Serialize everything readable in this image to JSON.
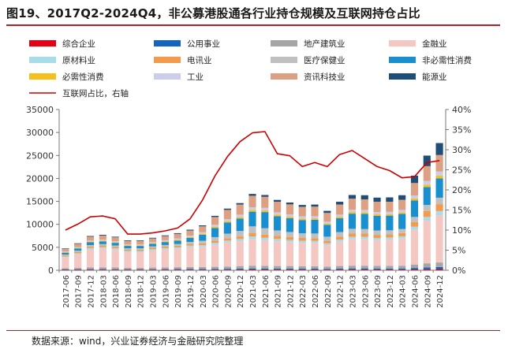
{
  "figure": {
    "title": "图19、2017Q2-2024Q4，非公募港股通各行业持仓规模及互联网持仓占比",
    "source": "数据来源：wind，兴业证券经济与金融研究院整理"
  },
  "chart_data": {
    "type": "bar",
    "stacked": true,
    "categories": [
      "2017-06",
      "2017-09",
      "2017-12",
      "2018-03",
      "2018-06",
      "2018-09",
      "2018-12",
      "2019-03",
      "2019-06",
      "2019-09",
      "2019-12",
      "2020-03",
      "2020-06",
      "2020-09",
      "2020-12",
      "2021-03",
      "2021-06",
      "2021-09",
      "2021-12",
      "2022-03",
      "2022-06",
      "2022-09",
      "2022-12",
      "2023-03",
      "2023-06",
      "2023-09",
      "2023-12",
      "2024-03",
      "2024-06",
      "2024-09",
      "2024-12"
    ],
    "x_tick_labels": [
      "2017-06",
      "2017-09",
      "2017-12",
      "2018-03",
      "2018-06",
      "2018-09",
      "2018-12",
      "2019-03",
      "2019-06",
      "2019-09",
      "2019-12",
      "2020-03",
      "2020-06",
      "2020-09",
      "2020-12",
      "2021-03",
      "2021-06",
      "2021-09",
      "2021-12",
      "2022-03",
      "2022-06",
      "2022-09",
      "2022-12",
      "2023-03",
      "2023-06",
      "2023-09",
      "2023-12",
      "2024-03",
      "2024-06",
      "2024-09",
      "2024-12"
    ],
    "y_left": {
      "range": [
        0,
        35000
      ],
      "ticks": [
        "0",
        "5000",
        "10000",
        "15000",
        "20000",
        "25000",
        "30000",
        "35000"
      ]
    },
    "y_right": {
      "range": [
        0,
        40
      ],
      "ticks": [
        "0%",
        "5%",
        "10%",
        "15%",
        "20%",
        "25%",
        "30%",
        "35%",
        "40%"
      ]
    },
    "series": [
      {
        "name": "综合企业",
        "color": "#e60012",
        "values": [
          80,
          90,
          100,
          100,
          90,
          90,
          80,
          80,
          90,
          100,
          100,
          100,
          110,
          120,
          140,
          160,
          150,
          140,
          140,
          130,
          130,
          110,
          140,
          150,
          150,
          140,
          140,
          140,
          180,
          220,
          250
        ]
      },
      {
        "name": "公用事业",
        "color": "#1565c0",
        "values": [
          100,
          120,
          140,
          140,
          130,
          120,
          120,
          130,
          140,
          150,
          160,
          170,
          190,
          200,
          220,
          240,
          230,
          220,
          220,
          210,
          210,
          190,
          230,
          250,
          250,
          240,
          240,
          250,
          320,
          400,
          450
        ]
      },
      {
        "name": "地产建筑业",
        "color": "#a6a6a6",
        "values": [
          300,
          350,
          400,
          400,
          380,
          350,
          350,
          380,
          400,
          420,
          450,
          420,
          450,
          500,
          550,
          600,
          580,
          560,
          560,
          540,
          520,
          470,
          560,
          600,
          600,
          580,
          580,
          600,
          750,
          900,
          1000
        ]
      },
      {
        "name": "金融业",
        "color": "#f4c7c3",
        "values": [
          2300,
          2900,
          3900,
          4100,
          3900,
          3400,
          3400,
          3700,
          3900,
          4000,
          4300,
          4400,
          4800,
          5200,
          5400,
          5800,
          5600,
          5400,
          5200,
          5100,
          5100,
          4700,
          5300,
          5800,
          5800,
          5600,
          5700,
          5900,
          7600,
          9300,
          10300
        ]
      },
      {
        "name": "原材料业",
        "color": "#a8dce8",
        "values": [
          200,
          250,
          300,
          300,
          280,
          260,
          260,
          280,
          300,
          320,
          350,
          380,
          420,
          460,
          500,
          560,
          530,
          500,
          480,
          460,
          450,
          400,
          470,
          500,
          500,
          480,
          480,
          500,
          650,
          800,
          900
        ]
      },
      {
        "name": "电讯业",
        "color": "#f39a4c",
        "values": [
          250,
          300,
          350,
          350,
          330,
          300,
          300,
          320,
          340,
          360,
          380,
          400,
          450,
          500,
          550,
          700,
          680,
          650,
          630,
          600,
          590,
          540,
          620,
          680,
          680,
          660,
          660,
          700,
          1000,
          1300,
          1500
        ]
      },
      {
        "name": "医疗保健业",
        "color": "#c0c0c0",
        "values": [
          200,
          250,
          300,
          300,
          290,
          270,
          270,
          300,
          330,
          370,
          420,
          550,
          800,
          1000,
          1200,
          1500,
          1400,
          1200,
          1100,
          1000,
          1000,
          900,
          1000,
          1050,
          1000,
          950,
          900,
          900,
          1100,
          1300,
          1400
        ]
      },
      {
        "name": "非必需性消费",
        "color": "#1a8fd0",
        "values": [
          400,
          500,
          600,
          600,
          580,
          520,
          520,
          580,
          650,
          750,
          900,
          1300,
          2000,
          2400,
          2700,
          3200,
          3500,
          3100,
          3000,
          2900,
          3000,
          2600,
          3000,
          3300,
          3300,
          3200,
          3200,
          3300,
          3600,
          3900,
          4200
        ]
      },
      {
        "name": "必需性消费",
        "color": "#f6c01c",
        "values": [
          100,
          120,
          150,
          150,
          140,
          130,
          130,
          140,
          160,
          180,
          200,
          220,
          280,
          320,
          350,
          400,
          380,
          350,
          340,
          320,
          310,
          280,
          330,
          360,
          360,
          340,
          340,
          350,
          450,
          550,
          600
        ]
      },
      {
        "name": "工业",
        "color": "#ccccec",
        "values": [
          150,
          180,
          220,
          220,
          210,
          190,
          190,
          210,
          230,
          260,
          290,
          330,
          400,
          450,
          500,
          560,
          540,
          500,
          480,
          460,
          450,
          400,
          470,
          500,
          500,
          480,
          480,
          500,
          650,
          800,
          900
        ]
      },
      {
        "name": "资讯科技业",
        "color": "#dda082",
        "values": [
          600,
          700,
          850,
          900,
          830,
          750,
          750,
          800,
          900,
          1000,
          1100,
          1300,
          1700,
          2000,
          2200,
          2500,
          2400,
          2300,
          2200,
          2100,
          2100,
          1900,
          2200,
          2400,
          2300,
          2250,
          2200,
          2200,
          2700,
          3200,
          3600
        ]
      },
      {
        "name": "能源业",
        "color": "#1f4e78",
        "values": [
          100,
          120,
          150,
          160,
          150,
          140,
          140,
          150,
          160,
          170,
          190,
          210,
          250,
          280,
          320,
          400,
          400,
          400,
          400,
          400,
          450,
          450,
          600,
          800,
          900,
          900,
          950,
          1000,
          1600,
          2300,
          2600
        ]
      }
    ],
    "line": {
      "name": "互联网占比，右轴",
      "color": "#cc0000",
      "axis": "right",
      "values": [
        10.0,
        11.5,
        13.3,
        13.5,
        12.8,
        9.0,
        9.0,
        9.3,
        9.8,
        10.5,
        12.8,
        17.5,
        23.5,
        28.3,
        32.0,
        34.2,
        34.5,
        29.0,
        28.5,
        25.8,
        26.8,
        25.8,
        28.8,
        29.8,
        27.8,
        25.8,
        24.8,
        23.0,
        23.3,
        26.8,
        27.3
      ]
    }
  }
}
